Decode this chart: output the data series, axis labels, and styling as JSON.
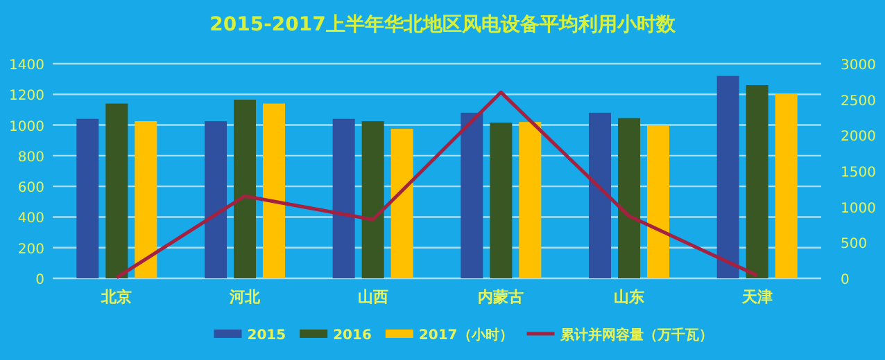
{
  "chart_data": {
    "type": "bar",
    "title": "2015-2017上半年华北地区风电设备平均利用小时数",
    "categories": [
      "北京",
      "河北",
      "山西",
      "内蒙古",
      "山东",
      "天津"
    ],
    "series": [
      {
        "name": "2015",
        "color": "#2f4f9f",
        "values": [
          1040,
          1025,
          1040,
          1080,
          1080,
          1320
        ]
      },
      {
        "name": "2016",
        "color": "#385723",
        "values": [
          1140,
          1165,
          1025,
          1015,
          1045,
          1260
        ]
      },
      {
        "name": "2017（小时）",
        "color": "#ffc000",
        "values": [
          1025,
          1140,
          975,
          1020,
          995,
          1205
        ]
      },
      {
        "name": "累计并网容量（万千瓦）",
        "color": "#a52140",
        "type": "line",
        "axis": "y2",
        "values": [
          10,
          1150,
          820,
          2600,
          870,
          40
        ]
      }
    ],
    "ylim": [
      0,
      1400
    ],
    "yticks": [
      0,
      200,
      400,
      600,
      800,
      1000,
      1200,
      1400
    ],
    "y2lim": [
      0,
      3000
    ],
    "y2ticks": [
      0,
      500,
      1000,
      1500,
      2000,
      2500,
      3000
    ],
    "grid": "y",
    "legend": "bottom"
  }
}
